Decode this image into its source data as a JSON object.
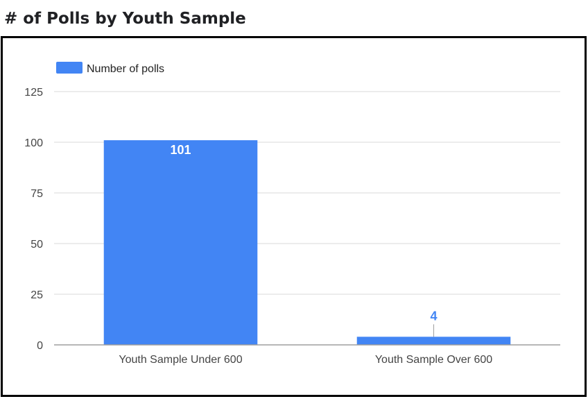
{
  "chart_data": {
    "type": "bar",
    "title": "# of Polls by Youth Sample",
    "categories": [
      "Youth Sample Under 600",
      "Youth Sample Over 600"
    ],
    "series": [
      {
        "name": "Number of polls",
        "values": [
          101,
          4
        ],
        "color": "#4285f4"
      }
    ],
    "data_labels": [
      "101",
      "4"
    ],
    "yticks": [
      0,
      25,
      50,
      75,
      100,
      125
    ],
    "ylim": [
      0,
      125
    ],
    "xlabel": "",
    "ylabel": "",
    "grid": true,
    "legend_position": "top-left"
  },
  "colors": {
    "bar": "#4285f4",
    "grid": "#d9d9d9",
    "axis": "#9e9e9e",
    "inside_label": "#ffffff",
    "outside_label": "#4285f4",
    "text": "#444444"
  }
}
